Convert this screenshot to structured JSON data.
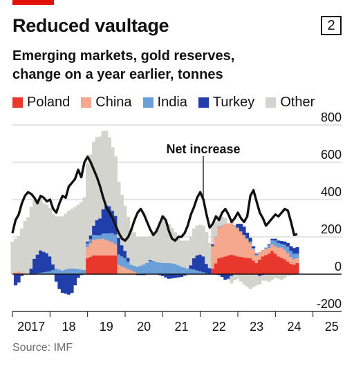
{
  "header": {
    "title": "Reduced vaultage",
    "chart_number": "2",
    "subtitle_line1": "Emerging markets, gold reserves,",
    "subtitle_line2": "change on a year earlier, tonnes",
    "source": "Source: IMF"
  },
  "colors": {
    "accent_red": "#e3120b",
    "Poland": "#e8382e",
    "China": "#f6a88f",
    "India": "#6a9fd8",
    "Turkey": "#213eaa",
    "Other": "#d4d4ce",
    "net_line": "#121212",
    "gridline": "#c9c9c9"
  },
  "chart_data": {
    "type": "area",
    "stacked": true,
    "annotation": "Net increase",
    "x_start": "2017-01",
    "x_end": "2025-09",
    "frequency": "monthly",
    "x_tick_labels": [
      "2017",
      "18",
      "19",
      "20",
      "21",
      "22",
      "23",
      "24",
      "25"
    ],
    "y_tick_labels": [
      "800",
      "600",
      "400",
      "200",
      "0",
      "-200"
    ],
    "ylim": [
      -200,
      800
    ],
    "grid": "horizontal",
    "axis_side": "right",
    "legend_position": "top",
    "series_keyframes": {
      "Poland": [
        [
          0,
          0
        ],
        [
          23,
          0
        ],
        [
          24,
          85
        ],
        [
          26,
          100
        ],
        [
          33,
          100
        ],
        [
          34,
          0
        ],
        [
          63,
          0
        ],
        [
          64,
          30
        ],
        [
          66,
          85
        ],
        [
          70,
          105
        ],
        [
          72,
          95
        ],
        [
          76,
          85
        ],
        [
          78,
          60
        ],
        [
          80,
          95
        ],
        [
          82,
          110
        ],
        [
          83,
          125
        ],
        [
          85,
          95
        ],
        [
          87,
          80
        ],
        [
          89,
          55
        ],
        [
          90,
          50
        ],
        [
          91,
          60
        ]
      ],
      "China": [
        [
          0,
          5
        ],
        [
          2,
          15
        ],
        [
          5,
          0
        ],
        [
          23,
          0
        ],
        [
          24,
          60
        ],
        [
          26,
          85
        ],
        [
          29,
          90
        ],
        [
          32,
          70
        ],
        [
          34,
          50
        ],
        [
          36,
          35
        ],
        [
          38,
          20
        ],
        [
          40,
          5
        ],
        [
          43,
          0
        ],
        [
          63,
          0
        ],
        [
          64,
          120
        ],
        [
          66,
          165
        ],
        [
          68,
          175
        ],
        [
          70,
          170
        ],
        [
          72,
          150
        ],
        [
          74,
          120
        ],
        [
          76,
          80
        ],
        [
          78,
          40
        ],
        [
          80,
          35
        ],
        [
          82,
          30
        ],
        [
          84,
          40
        ],
        [
          86,
          55
        ],
        [
          88,
          45
        ],
        [
          90,
          30
        ],
        [
          91,
          25
        ]
      ],
      "India": [
        [
          0,
          0
        ],
        [
          6,
          0
        ],
        [
          8,
          5
        ],
        [
          10,
          10
        ],
        [
          12,
          15
        ],
        [
          14,
          30
        ],
        [
          16,
          20
        ],
        [
          18,
          30
        ],
        [
          20,
          30
        ],
        [
          22,
          25
        ],
        [
          24,
          20
        ],
        [
          26,
          25
        ],
        [
          28,
          20
        ],
        [
          30,
          35
        ],
        [
          32,
          50
        ],
        [
          34,
          55
        ],
        [
          36,
          50
        ],
        [
          38,
          30
        ],
        [
          40,
          35
        ],
        [
          42,
          50
        ],
        [
          44,
          70
        ],
        [
          46,
          65
        ],
        [
          48,
          60
        ],
        [
          50,
          60
        ],
        [
          52,
          55
        ],
        [
          54,
          40
        ],
        [
          56,
          30
        ],
        [
          58,
          25
        ],
        [
          60,
          15
        ],
        [
          62,
          5
        ],
        [
          64,
          0
        ],
        [
          66,
          5
        ],
        [
          68,
          0
        ],
        [
          70,
          0
        ],
        [
          72,
          5
        ],
        [
          74,
          0
        ],
        [
          76,
          10
        ],
        [
          78,
          5
        ],
        [
          80,
          0
        ],
        [
          82,
          15
        ],
        [
          84,
          30
        ],
        [
          86,
          20
        ],
        [
          88,
          35
        ],
        [
          90,
          30
        ],
        [
          91,
          25
        ]
      ],
      "Turkey": [
        [
          0,
          0
        ],
        [
          1,
          -60
        ],
        [
          2,
          -45
        ],
        [
          3,
          -10
        ],
        [
          4,
          0
        ],
        [
          5,
          0
        ],
        [
          6,
          30
        ],
        [
          7,
          80
        ],
        [
          8,
          100
        ],
        [
          9,
          120
        ],
        [
          10,
          110
        ],
        [
          11,
          100
        ],
        [
          12,
          80
        ],
        [
          13,
          30
        ],
        [
          14,
          -40
        ],
        [
          15,
          -80
        ],
        [
          16,
          -100
        ],
        [
          17,
          -105
        ],
        [
          18,
          -110
        ],
        [
          19,
          -100
        ],
        [
          20,
          -60
        ],
        [
          21,
          -20
        ],
        [
          22,
          -5
        ],
        [
          23,
          0
        ],
        [
          24,
          10
        ],
        [
          25,
          20
        ],
        [
          26,
          50
        ],
        [
          27,
          80
        ],
        [
          28,
          90
        ],
        [
          29,
          130
        ],
        [
          30,
          150
        ],
        [
          31,
          145
        ],
        [
          32,
          120
        ],
        [
          33,
          100
        ],
        [
          34,
          90
        ],
        [
          35,
          60
        ],
        [
          36,
          40
        ],
        [
          37,
          20
        ],
        [
          38,
          0
        ],
        [
          39,
          0
        ],
        [
          40,
          -5
        ],
        [
          42,
          -5
        ],
        [
          44,
          5
        ],
        [
          46,
          0
        ],
        [
          48,
          -10
        ],
        [
          50,
          -25
        ],
        [
          52,
          -20
        ],
        [
          54,
          -15
        ],
        [
          56,
          0
        ],
        [
          57,
          20
        ],
        [
          58,
          60
        ],
        [
          59,
          80
        ],
        [
          60,
          90
        ],
        [
          61,
          85
        ],
        [
          62,
          50
        ],
        [
          63,
          30
        ],
        [
          64,
          10
        ],
        [
          65,
          0
        ],
        [
          66,
          -5
        ],
        [
          67,
          -15
        ],
        [
          68,
          -30
        ],
        [
          69,
          -25
        ],
        [
          70,
          -10
        ],
        [
          71,
          0
        ],
        [
          72,
          20
        ],
        [
          73,
          40
        ],
        [
          74,
          45
        ],
        [
          75,
          30
        ],
        [
          76,
          20
        ],
        [
          77,
          10
        ],
        [
          78,
          5
        ],
        [
          79,
          -10
        ],
        [
          80,
          -5
        ],
        [
          81,
          0
        ],
        [
          82,
          5
        ],
        [
          84,
          10
        ],
        [
          86,
          15
        ],
        [
          88,
          20
        ],
        [
          90,
          30
        ],
        [
          91,
          35
        ]
      ],
      "Other": [
        [
          0,
          170
        ],
        [
          2,
          190
        ],
        [
          4,
          280
        ],
        [
          6,
          330
        ],
        [
          8,
          300
        ],
        [
          10,
          260
        ],
        [
          12,
          260
        ],
        [
          14,
          280
        ],
        [
          16,
          290
        ],
        [
          18,
          310
        ],
        [
          20,
          330
        ],
        [
          22,
          360
        ],
        [
          24,
          420
        ],
        [
          26,
          450
        ],
        [
          28,
          440
        ],
        [
          30,
          400
        ],
        [
          32,
          340
        ],
        [
          34,
          300
        ],
        [
          36,
          240
        ],
        [
          38,
          200
        ],
        [
          40,
          160
        ],
        [
          42,
          150
        ],
        [
          44,
          130
        ],
        [
          46,
          180
        ],
        [
          48,
          240
        ],
        [
          50,
          210
        ],
        [
          52,
          170
        ],
        [
          54,
          140
        ],
        [
          56,
          150
        ],
        [
          58,
          160
        ],
        [
          60,
          160
        ],
        [
          62,
          170
        ],
        [
          64,
          100
        ],
        [
          66,
          60
        ],
        [
          68,
          30
        ],
        [
          70,
          -40
        ],
        [
          72,
          -25
        ],
        [
          74,
          -55
        ],
        [
          76,
          -80
        ],
        [
          78,
          -60
        ],
        [
          80,
          -30
        ],
        [
          82,
          -40
        ],
        [
          84,
          -20
        ],
        [
          86,
          -30
        ],
        [
          88,
          -10
        ],
        [
          90,
          -5
        ],
        [
          91,
          0
        ]
      ],
      "Net increase": [
        [
          0,
          220
        ],
        [
          1,
          290
        ],
        [
          2,
          320
        ],
        [
          3,
          380
        ],
        [
          4,
          420
        ],
        [
          5,
          440
        ],
        [
          6,
          430
        ],
        [
          7,
          410
        ],
        [
          8,
          380
        ],
        [
          9,
          420
        ],
        [
          10,
          410
        ],
        [
          11,
          390
        ],
        [
          12,
          400
        ],
        [
          13,
          350
        ],
        [
          14,
          330
        ],
        [
          15,
          380
        ],
        [
          16,
          420
        ],
        [
          17,
          410
        ],
        [
          18,
          470
        ],
        [
          19,
          490
        ],
        [
          20,
          510
        ],
        [
          21,
          560
        ],
        [
          22,
          520
        ],
        [
          23,
          600
        ],
        [
          24,
          630
        ],
        [
          25,
          600
        ],
        [
          26,
          560
        ],
        [
          27,
          520
        ],
        [
          28,
          470
        ],
        [
          29,
          410
        ],
        [
          30,
          360
        ],
        [
          31,
          330
        ],
        [
          32,
          300
        ],
        [
          33,
          260
        ],
        [
          34,
          220
        ],
        [
          35,
          190
        ],
        [
          36,
          180
        ],
        [
          37,
          200
        ],
        [
          38,
          240
        ],
        [
          39,
          290
        ],
        [
          40,
          330
        ],
        [
          41,
          350
        ],
        [
          42,
          320
        ],
        [
          43,
          280
        ],
        [
          44,
          240
        ],
        [
          45,
          210
        ],
        [
          46,
          230
        ],
        [
          47,
          270
        ],
        [
          48,
          310
        ],
        [
          49,
          290
        ],
        [
          50,
          230
        ],
        [
          51,
          190
        ],
        [
          52,
          180
        ],
        [
          53,
          200
        ],
        [
          54,
          200
        ],
        [
          55,
          220
        ],
        [
          56,
          260
        ],
        [
          57,
          320
        ],
        [
          58,
          360
        ],
        [
          59,
          410
        ],
        [
          60,
          440
        ],
        [
          61,
          400
        ],
        [
          62,
          320
        ],
        [
          63,
          250
        ],
        [
          64,
          270
        ],
        [
          65,
          310
        ],
        [
          66,
          290
        ],
        [
          67,
          330
        ],
        [
          68,
          350
        ],
        [
          69,
          320
        ],
        [
          70,
          280
        ],
        [
          71,
          300
        ],
        [
          72,
          330
        ],
        [
          73,
          300
        ],
        [
          74,
          280
        ],
        [
          75,
          310
        ],
        [
          76,
          420
        ],
        [
          77,
          450
        ],
        [
          78,
          390
        ],
        [
          79,
          330
        ],
        [
          80,
          300
        ],
        [
          81,
          260
        ],
        [
          82,
          280
        ],
        [
          83,
          300
        ],
        [
          84,
          320
        ],
        [
          85,
          310
        ],
        [
          86,
          330
        ],
        [
          87,
          350
        ],
        [
          88,
          340
        ],
        [
          89,
          280
        ],
        [
          90,
          210
        ],
        [
          91,
          215
        ]
      ]
    },
    "series": [
      {
        "name": "Poland"
      },
      {
        "name": "China"
      },
      {
        "name": "India"
      },
      {
        "name": "Turkey"
      },
      {
        "name": "Other"
      }
    ],
    "line_series": "Net increase"
  }
}
